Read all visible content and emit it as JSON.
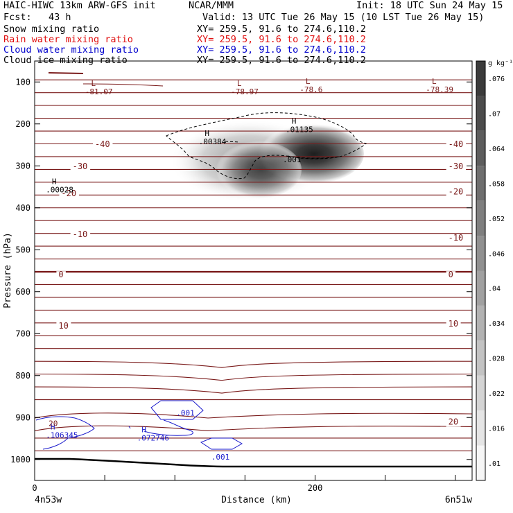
{
  "header": {
    "title": "HAIC-HIWC 13km ARW-GFS init",
    "org": "NCAR/MMM",
    "init": "Init: 18 UTC Sun 24 May 15",
    "fcst": "Fcst:   43 h",
    "valid": "Valid: 13 UTC Tue 26 May 15 (10 LST Tue 26 May 15)",
    "fields": [
      {
        "name": "Snow mixing ratio",
        "xy": "XY= 259.5, 91.6 to 274.6,110.2",
        "color": "#000000"
      },
      {
        "name": "Rain water mixing ratio",
        "xy": "XY= 259.5, 91.6 to 274.6,110.2",
        "color": "#ff0000"
      },
      {
        "name": "Cloud water mixing ratio",
        "xy": "XY= 259.5, 91.6 to 274.6,110.2",
        "color": "#0000cc"
      },
      {
        "name": "Cloud ice mixing ratio",
        "xy": "XY= 259.5, 91.6 to 274.6,110.2",
        "color": "#000000"
      }
    ]
  },
  "chart_data": {
    "type": "heatmap",
    "xlabel": "Distance (km)",
    "ylabel": "Pressure (hPa)",
    "x_ticks": [
      0,
      200
    ],
    "y_ticks": [
      100,
      200,
      300,
      400,
      500,
      600,
      700,
      800,
      900,
      1000
    ],
    "xlim": [
      0,
      312
    ],
    "ylim": [
      50,
      1050
    ],
    "endpoints": {
      "left": "4n53w",
      "right": "6n51w"
    },
    "colorbar": {
      "unit": "g kg⁻¹",
      "ticks": [
        ".01",
        ".016",
        ".022",
        ".028",
        ".034",
        ".04",
        ".046",
        ".052",
        ".058",
        ".064",
        ".07",
        ".076"
      ]
    },
    "temperature_labels": [
      {
        "text": "-40",
        "x": 43,
        "p": 255
      },
      {
        "text": "-40",
        "x": 295,
        "p": 255
      },
      {
        "text": "-30",
        "x": 27,
        "p": 308
      },
      {
        "text": "-30",
        "x": 295,
        "p": 308
      },
      {
        "text": "-20",
        "x": 19,
        "p": 372
      },
      {
        "text": "-20",
        "x": 295,
        "p": 368
      },
      {
        "text": "-10",
        "x": 27,
        "p": 470
      },
      {
        "text": "-10",
        "x": 295,
        "p": 478
      },
      {
        "text": "0",
        "x": 17,
        "p": 566
      },
      {
        "text": "0",
        "x": 295,
        "p": 566
      },
      {
        "text": "10",
        "x": 17,
        "p": 688
      },
      {
        "text": "10",
        "x": 295,
        "p": 683
      },
      {
        "text": "20",
        "x": 295,
        "p": 917
      }
    ],
    "extrema_labels": [
      {
        "symbol": "L",
        "value": "-81.07",
        "x": 36,
        "p": 113
      },
      {
        "symbol": "L",
        "value": "-78.97",
        "x": 140,
        "p": 113
      },
      {
        "symbol": "L",
        "value": "-78.6",
        "x": 189,
        "p": 108
      },
      {
        "symbol": "L",
        "value": "-78.39",
        "x": 279,
        "p": 108
      },
      {
        "symbol": "H",
        "value": ".00384",
        "x": 117,
        "p": 232
      },
      {
        "symbol": "H",
        "value": ".01135",
        "x": 179,
        "p": 203
      },
      {
        "symbol": "",
        "value": ".001",
        "x": 177,
        "p": 275
      },
      {
        "symbol": "H",
        "value": ".00028",
        "x": 8,
        "p": 347
      }
    ],
    "cloud_water_labels": [
      {
        "symbol": "H",
        "value": ".106345",
        "x": 8,
        "p": 935
      },
      {
        "symbol": "H",
        "value": ".072746",
        "x": 73,
        "p": 942
      },
      {
        "symbol": "",
        "value": ".001",
        "x": 101,
        "p": 882
      },
      {
        "symbol": "",
        "value": ".001",
        "x": 126,
        "p": 987
      }
    ],
    "extra_labels": [
      {
        "text": "20",
        "x": 8,
        "p": 920
      }
    ]
  }
}
